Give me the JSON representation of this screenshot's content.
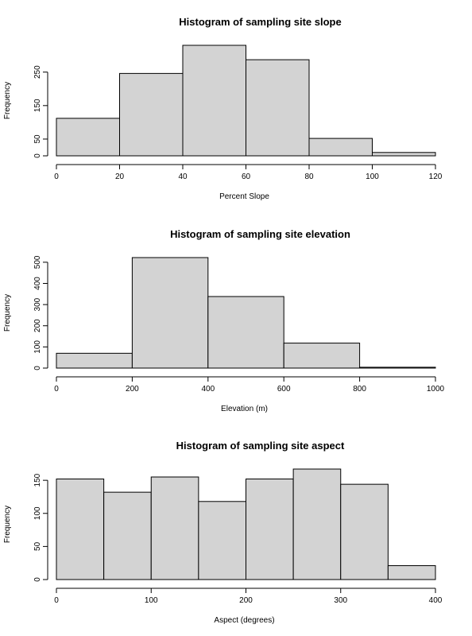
{
  "chart_data": [
    {
      "type": "bar",
      "title": "Histogram of sampling site slope",
      "xlabel": "Percent Slope",
      "ylabel": "Frequency",
      "bins": [
        [
          0,
          20
        ],
        [
          20,
          40
        ],
        [
          40,
          60
        ],
        [
          60,
          80
        ],
        [
          80,
          100
        ],
        [
          100,
          120
        ]
      ],
      "values": [
        112,
        246,
        330,
        287,
        52,
        10
      ],
      "xlim": [
        0,
        120
      ],
      "ylim": [
        0,
        330
      ],
      "xticks": [
        0,
        20,
        40,
        60,
        80,
        100,
        120
      ],
      "yticks": [
        0,
        50,
        150,
        250
      ],
      "grid": false
    },
    {
      "type": "bar",
      "title": "Histogram of sampling site elevation",
      "xlabel": "Elevation (m)",
      "ylabel": "Frequency",
      "bins": [
        [
          0,
          200
        ],
        [
          200,
          400
        ],
        [
          400,
          600
        ],
        [
          600,
          800
        ],
        [
          800,
          1000
        ]
      ],
      "values": [
        70,
        522,
        338,
        118,
        4
      ],
      "xlim": [
        0,
        1000
      ],
      "ylim": [
        0,
        522
      ],
      "xticks": [
        0,
        200,
        400,
        600,
        800,
        1000
      ],
      "yticks": [
        0,
        100,
        200,
        300,
        400,
        500
      ],
      "grid": false
    },
    {
      "type": "bar",
      "title": "Histogram of sampling site aspect",
      "xlabel": "Aspect (degrees)",
      "ylabel": "Frequency",
      "bins": [
        [
          0,
          50
        ],
        [
          50,
          100
        ],
        [
          100,
          150
        ],
        [
          150,
          200
        ],
        [
          200,
          250
        ],
        [
          250,
          300
        ],
        [
          300,
          350
        ],
        [
          350,
          400
        ]
      ],
      "values": [
        152,
        132,
        155,
        118,
        152,
        167,
        144,
        21
      ],
      "xlim": [
        0,
        400
      ],
      "ylim": [
        0,
        167
      ],
      "xticks": [
        0,
        100,
        200,
        300,
        400
      ],
      "yticks": [
        0,
        50,
        100,
        150
      ],
      "grid": false
    }
  ]
}
